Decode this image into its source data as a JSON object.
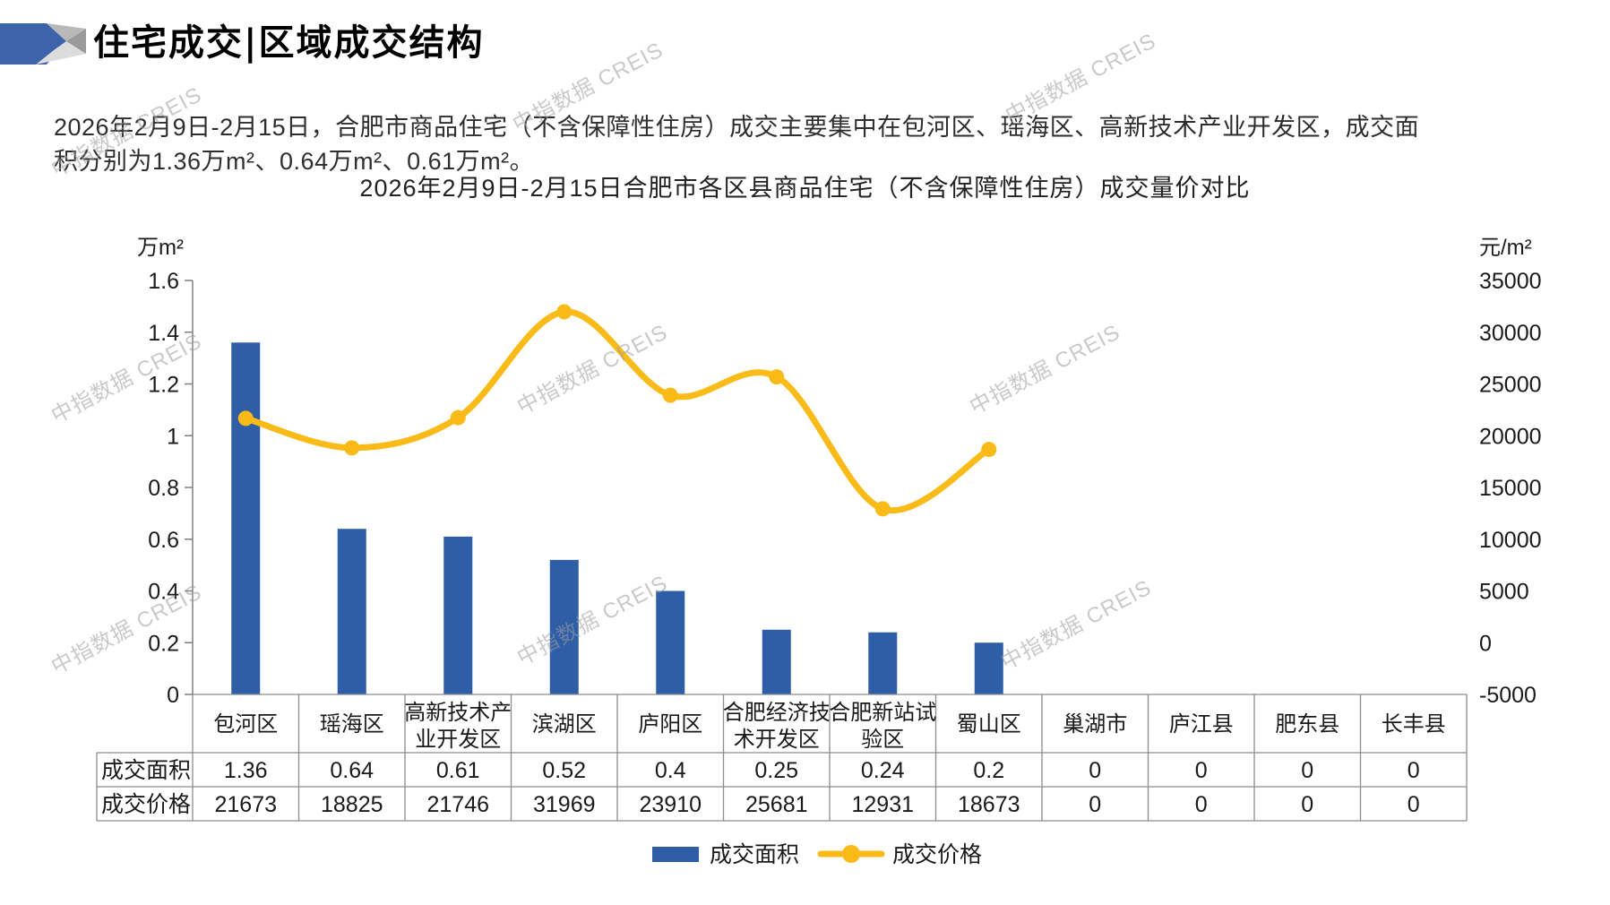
{
  "header": {
    "title": "住宅成交|区域成交结构"
  },
  "summary": "2026年2月9日-2月15日，合肥市商品住宅（不含保障性住房）成交主要集中在包河区、瑶海区、高新技术产业开发区，成交面积分别为1.36万m²、0.64万m²、0.61万m²。",
  "watermark": "中指数据 CREIS",
  "chart_data": {
    "type": "bar+line",
    "title": "2026年2月9日-2月15日合肥市各区县商品住宅（不含保障性住房）成交量价对比",
    "categories": [
      "包河区",
      "瑶海区",
      "高新技术产业开发区",
      "滨湖区",
      "庐阳区",
      "合肥经济技术开发区",
      "合肥新站试验区",
      "蜀山区",
      "巢湖市",
      "庐江县",
      "肥东县",
      "长丰县"
    ],
    "categories_wrapped": [
      [
        "包河区"
      ],
      [
        "瑶海区"
      ],
      [
        "高新技术产",
        "业开发区"
      ],
      [
        "滨湖区"
      ],
      [
        "庐阳区"
      ],
      [
        "合肥经济技",
        "术开发区"
      ],
      [
        "合肥新站试",
        "验区"
      ],
      [
        "蜀山区"
      ],
      [
        "巢湖市"
      ],
      [
        "庐江县"
      ],
      [
        "肥东县"
      ],
      [
        "长丰县"
      ]
    ],
    "series": [
      {
        "name": "成交面积",
        "type": "bar",
        "axis": "left",
        "values": [
          1.36,
          0.64,
          0.61,
          0.52,
          0.4,
          0.25,
          0.24,
          0.2,
          0,
          0,
          0,
          0
        ]
      },
      {
        "name": "成交价格",
        "type": "line",
        "axis": "right",
        "values": [
          21673,
          18825,
          21746,
          31969,
          23910,
          25681,
          12931,
          18673,
          0,
          0,
          0,
          0
        ]
      }
    ],
    "left_axis": {
      "unit": "万m²",
      "min": 0,
      "max": 1.6,
      "step": 0.2,
      "tick_labels": [
        "0",
        "0.2",
        "0.4",
        "0.6",
        "0.8",
        "1",
        "1.2",
        "1.4",
        "1.6"
      ]
    },
    "right_axis": {
      "unit": "元/m²",
      "min": -5000,
      "max": 35000,
      "step": 5000,
      "tick_labels": [
        "-5000",
        "0",
        "5000",
        "10000",
        "15000",
        "20000",
        "25000",
        "30000",
        "35000"
      ]
    },
    "legend": [
      "成交面积",
      "成交价格"
    ],
    "colors": {
      "bar": "#2E5FA6",
      "line": "#FABB19",
      "grid": "#8c8c8c",
      "axis": "#808080"
    },
    "grid": "off",
    "legend_position": "bottom",
    "data_table": true
  }
}
